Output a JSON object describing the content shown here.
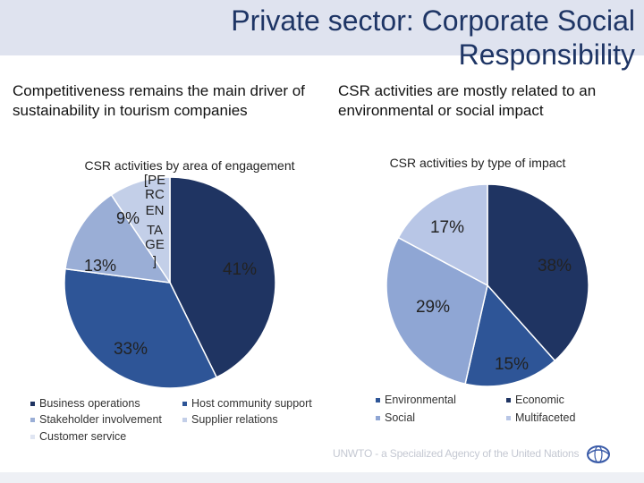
{
  "title": "Private sector: Corporate Social Responsibility",
  "left_heading": "Competitiveness remains the main driver of sustainability in tourism companies",
  "right_heading": "CSR activities are mostly related to an environmental or social impact",
  "footer_text": "UNWTO - a Specialized Agency of the United Nations",
  "logo_icon": "unwto-globe-icon",
  "chart_data": [
    {
      "type": "pie",
      "title": "CSR activities by area of engagement",
      "categories": [
        "Business operations",
        "Host community support",
        "Stakeholder involvement",
        "Supplier relations",
        "Customer service"
      ],
      "values": [
        41,
        33,
        13,
        9,
        0
      ],
      "labels": [
        "41%",
        "33%",
        "13%",
        "9%",
        "[PERCENTAGE]"
      ],
      "colors": [
        "#1f3462",
        "#2e5597",
        "#9aaed6",
        "#c3cfe8",
        "#ffffff"
      ],
      "legend_position": "bottom"
    },
    {
      "type": "pie",
      "title": "CSR activities by type of impact",
      "categories": [
        "Economic",
        "Environmental",
        "Social",
        "Multifaceted"
      ],
      "values": [
        38,
        15,
        29,
        17
      ],
      "labels": [
        "38%",
        "15%",
        "29%",
        "17%"
      ],
      "colors": [
        "#1f3462",
        "#2e5597",
        "#8fa6d4",
        "#b8c6e6"
      ],
      "legend_position": "bottom"
    }
  ],
  "legend_left": [
    "Business operations",
    "Host community support",
    "Stakeholder involvement",
    "Supplier relations",
    "Customer service"
  ],
  "legend_right": [
    "Environmental",
    "Economic",
    "Social",
    "Multifaceted"
  ]
}
